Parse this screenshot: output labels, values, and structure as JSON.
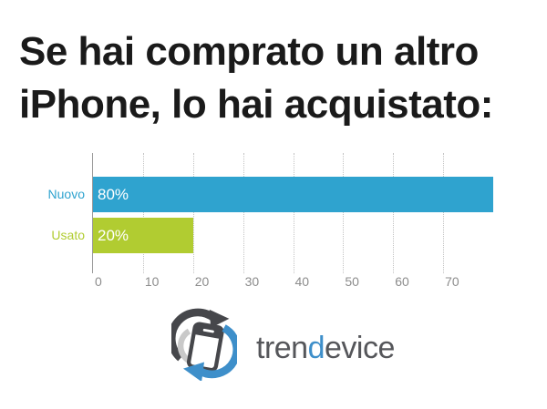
{
  "title": {
    "line1": "Se hai comprato un altro",
    "line2": "iPhone, lo hai acquistato:",
    "color": "#1a1a1a"
  },
  "chart_data": {
    "type": "bar",
    "orientation": "horizontal",
    "categories": [
      "Nuovo",
      "Usato"
    ],
    "values": [
      80,
      20
    ],
    "value_labels": [
      "80%",
      "20%"
    ],
    "bar_colors": [
      "#2fa3cf",
      "#b1cc31"
    ],
    "category_label_colors": [
      "#2fa3cf",
      "#b1cc31"
    ],
    "value_label_color": "#ffffff",
    "xlim": [
      0,
      80
    ],
    "xticks": [
      0,
      10,
      20,
      30,
      40,
      50,
      60,
      70
    ],
    "grid": "vertical-dotted",
    "grid_color": "#c3c3c3",
    "axis_color": "#9a9a9a",
    "tick_label_color": "#8c8c8c",
    "title": "",
    "xlabel": "",
    "ylabel": ""
  },
  "logo": {
    "part1": "tren",
    "part2": "d",
    "part3": "evice",
    "text_color": "#55565a",
    "accent_color": "#3e8fca",
    "icon_dark": "#46474b",
    "icon_blue": "#3e8fca",
    "icon_light": "#c9c9c9"
  }
}
